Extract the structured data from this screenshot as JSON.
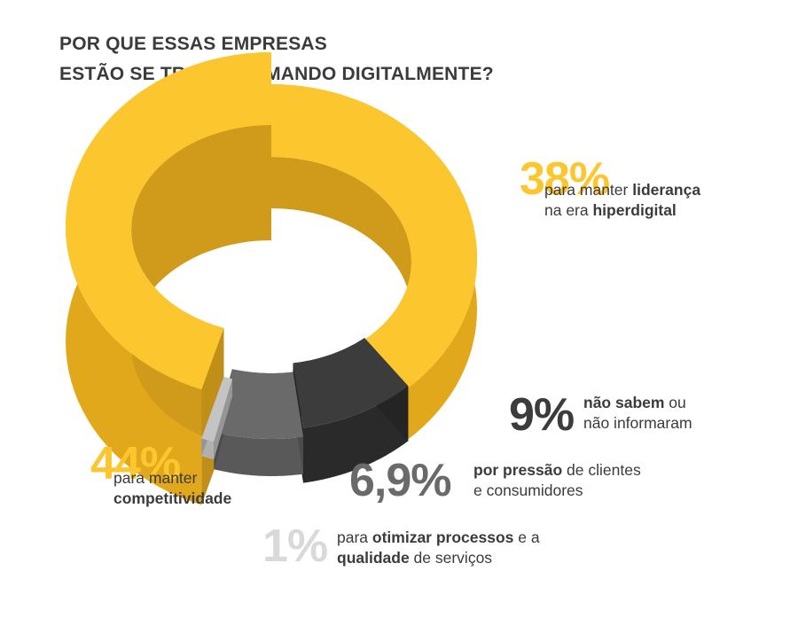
{
  "title": {
    "line1": "POR QUE ESSAS EMPRESAS",
    "line2": "ESTÃO SE TRANSFORMANDO DIGITALMENTE?"
  },
  "colors": {
    "yellow_top": "#FCC62E",
    "yellow_side": "#E2A81C",
    "yellow_dark": "#C98F12",
    "black_top": "#3C3C3C",
    "black_side": "#2A2A2A",
    "gray_top": "#6A6A6A",
    "gray_side": "#595959",
    "light_top": "#C4C4C4",
    "light_side": "#B0B0B0",
    "text": "#3B3B3B",
    "light_text": "#D9D9D9"
  },
  "chart_data": {
    "type": "pie",
    "variant": "3d-donut",
    "title": "POR QUE ESSAS EMPRESAS ESTÃO SE TRANSFORMANDO DIGITALMENTE?",
    "categories": [
      "para manter competitividade",
      "para manter liderança na era hiperdigital",
      "não sabem ou não informaram",
      "por pressão de clientes e consumidores",
      "para otimizar processos e a qualidade de serviços"
    ],
    "values": [
      44,
      38,
      9,
      6.9,
      1
    ],
    "unit": "%"
  },
  "labels": {
    "lideranca": {
      "pct": "38%",
      "t1": "para manter ",
      "b1": "liderança",
      "t2": "na era ",
      "b2": "hiperdigital"
    },
    "naosabem": {
      "pct": "9%",
      "b1": "não sabem",
      "t1": " ou",
      "t2": "não informaram"
    },
    "pressao": {
      "pct": "6,9%",
      "b1": "por pressão",
      "t1": " de clientes",
      "t2": "e consumidores"
    },
    "competitividade": {
      "pct": "44%",
      "t1": "para manter",
      "b1": "competitividade"
    },
    "otimizar": {
      "pct": "1%",
      "t1": "para ",
      "b1": "otimizar processos",
      "t2": " e a",
      "b2": "qualidade",
      "t3": " de serviços"
    }
  }
}
